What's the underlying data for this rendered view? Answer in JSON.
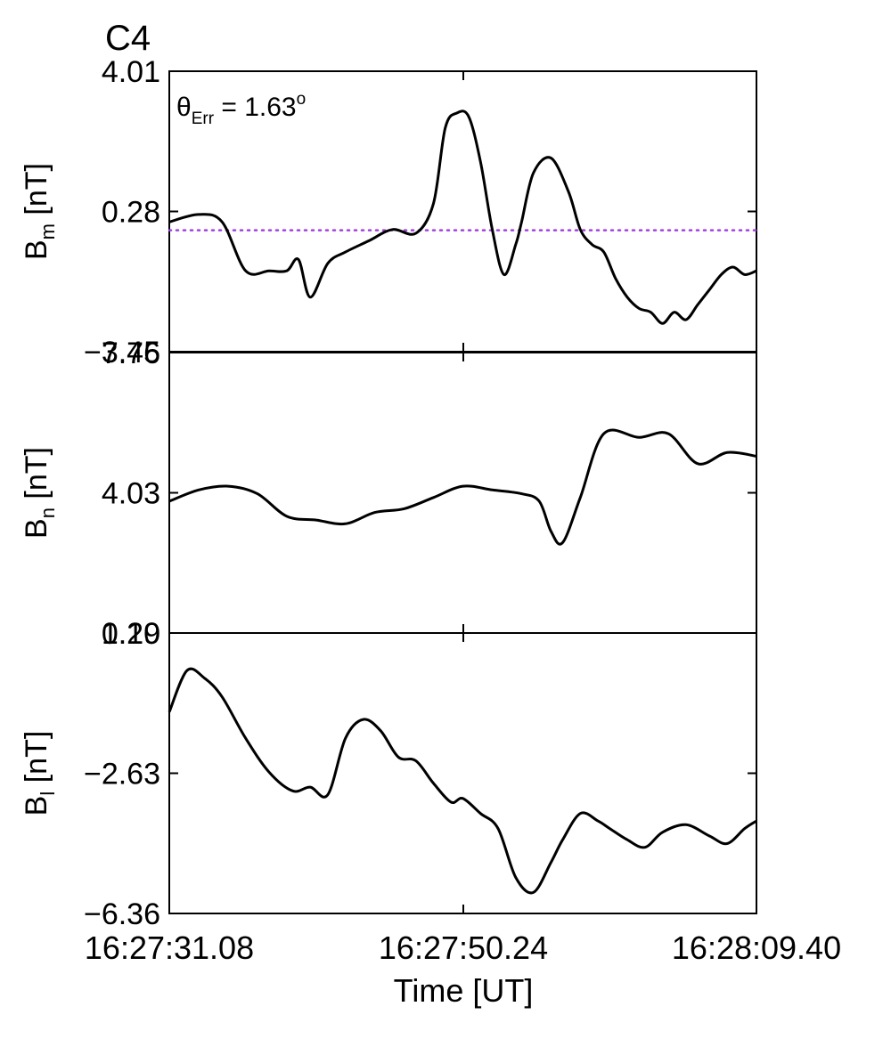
{
  "figure": {
    "label": "C4",
    "label_color": "#ee1111",
    "annotation": {
      "symbol": "θ",
      "subscript": "Err",
      "equals": " =  1.63",
      "superscript": "o"
    },
    "xlabel": "Time [UT]",
    "xticks": [
      "16:27:31.08",
      "16:27:50.24",
      "16:28:09.40"
    ]
  },
  "chart_data": [
    {
      "type": "line",
      "panel": "Bm",
      "ylabel": {
        "main": "B",
        "sub": "m",
        "unit": " [nT]"
      },
      "ylim": [
        -3.45,
        4.01
      ],
      "yticks": [
        "4.01",
        "0.28",
        "-3.45"
      ],
      "reference_line": {
        "y": -0.22,
        "style": "dotted",
        "color": "#a040e0"
      },
      "line_color": "#000000",
      "x": [
        0,
        5,
        9,
        13,
        17,
        20,
        22,
        24,
        27,
        30,
        34,
        38,
        42,
        45,
        47,
        49,
        51,
        53,
        55,
        57,
        59,
        60,
        62,
        65,
        68,
        70,
        72,
        74,
        76,
        78,
        80,
        82,
        84,
        86,
        88,
        90,
        92,
        94,
        96,
        98,
        100
      ],
      "y": [
        0.0,
        0.2,
        0.0,
        -1.3,
        -1.3,
        -1.3,
        -1.0,
        -2.0,
        -1.1,
        -0.8,
        -0.5,
        -0.2,
        -0.3,
        0.5,
        2.5,
        2.9,
        2.8,
        1.6,
        -0.2,
        -1.4,
        -0.6,
        0.0,
        1.3,
        1.7,
        0.8,
        -0.2,
        -0.6,
        -0.8,
        -1.5,
        -2.0,
        -2.3,
        -2.4,
        -2.7,
        -2.4,
        -2.6,
        -2.2,
        -1.8,
        -1.4,
        -1.2,
        -1.4,
        -1.3
      ]
    },
    {
      "type": "line",
      "panel": "Bn",
      "ylabel": {
        "main": "B",
        "sub": "n",
        "unit": " [nT]"
      },
      "ylim": [
        0.29,
        7.76
      ],
      "yticks": [
        "7.76",
        "4.03",
        "0.29"
      ],
      "line_color": "#000000",
      "x": [
        0,
        5,
        10,
        15,
        20,
        25,
        30,
        35,
        40,
        45,
        50,
        55,
        60,
        63,
        65,
        67,
        70,
        74,
        80,
        85,
        90,
        95,
        100
      ],
      "y": [
        3.8,
        4.1,
        4.2,
        4.0,
        3.4,
        3.3,
        3.2,
        3.5,
        3.6,
        3.9,
        4.2,
        4.1,
        4.0,
        3.8,
        3.0,
        2.7,
        3.9,
        5.6,
        5.5,
        5.6,
        4.8,
        5.1,
        5.0
      ]
    },
    {
      "type": "line",
      "panel": "Bl",
      "ylabel": {
        "main": "B",
        "sub": "l",
        "unit": " [nT]"
      },
      "ylim": [
        -6.36,
        1.1
      ],
      "yticks": [
        "1.10",
        "-2.63",
        "-6.36"
      ],
      "line_color": "#000000",
      "x": [
        0,
        3,
        6,
        9,
        13,
        17,
        21,
        24,
        27,
        30,
        33,
        36,
        39,
        42,
        45,
        48,
        50,
        53,
        56,
        59,
        62,
        65,
        67,
        70,
        73,
        75,
        78,
        81,
        84,
        88,
        92,
        95,
        98,
        100
      ],
      "y": [
        -1.0,
        0.1,
        -0.1,
        -0.6,
        -1.7,
        -2.6,
        -3.1,
        -3.0,
        -3.2,
        -1.7,
        -1.2,
        -1.5,
        -2.2,
        -2.3,
        -2.9,
        -3.4,
        -3.3,
        -3.7,
        -4.1,
        -5.4,
        -5.8,
        -5.0,
        -4.4,
        -3.7,
        -3.9,
        -4.1,
        -4.4,
        -4.6,
        -4.2,
        -4.0,
        -4.3,
        -4.5,
        -4.1,
        -3.9
      ]
    }
  ]
}
